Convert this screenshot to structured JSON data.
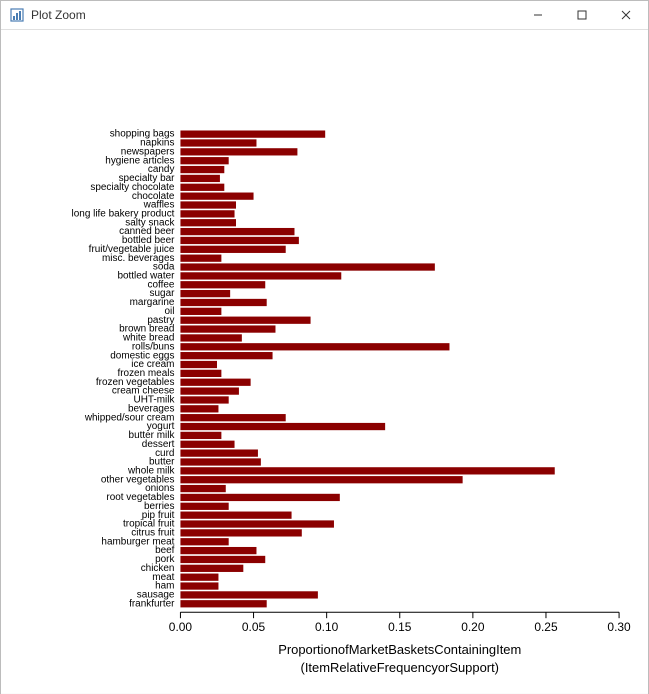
{
  "window": {
    "title": "Plot Zoom",
    "controls": {
      "minimize": "minimize",
      "maximize": "maximize",
      "close": "close"
    }
  },
  "chart": {
    "type": "bar-horizontal",
    "bar_color": "#8b0000",
    "background_color": "#ffffff",
    "axis_color": "#000000",
    "x_axis": {
      "min": 0.0,
      "max": 0.3,
      "ticks": [
        0.0,
        0.05,
        0.1,
        0.15,
        0.2,
        0.25,
        0.3
      ],
      "tick_labels": [
        "0.00",
        "0.05",
        "0.10",
        "0.15",
        "0.20",
        "0.25",
        "0.30"
      ],
      "title_line1": "ProportionofMarketBasketsContainingItem",
      "title_line2": "(ItemRelativeFrequencyorSupport)",
      "label_fontsize": 12,
      "title_fontsize": 13
    },
    "y_axis": {
      "label_fontsize": 10
    },
    "items": [
      {
        "label": "shopping bags",
        "value": 0.099
      },
      {
        "label": "napkins",
        "value": 0.052
      },
      {
        "label": "newspapers",
        "value": 0.08
      },
      {
        "label": "hygiene articles",
        "value": 0.033
      },
      {
        "label": "candy",
        "value": 0.03
      },
      {
        "label": "specialty bar",
        "value": 0.027
      },
      {
        "label": "specialty chocolate",
        "value": 0.03
      },
      {
        "label": "chocolate",
        "value": 0.05
      },
      {
        "label": "waffles",
        "value": 0.038
      },
      {
        "label": "long life bakery product",
        "value": 0.037
      },
      {
        "label": "salty snack",
        "value": 0.038
      },
      {
        "label": "canned beer",
        "value": 0.078
      },
      {
        "label": "bottled beer",
        "value": 0.081
      },
      {
        "label": "fruit/vegetable juice",
        "value": 0.072
      },
      {
        "label": "misc. beverages",
        "value": 0.028
      },
      {
        "label": "soda",
        "value": 0.174
      },
      {
        "label": "bottled water",
        "value": 0.11
      },
      {
        "label": "coffee",
        "value": 0.058
      },
      {
        "label": "sugar",
        "value": 0.034
      },
      {
        "label": "margarine",
        "value": 0.059
      },
      {
        "label": "oil",
        "value": 0.028
      },
      {
        "label": "pastry",
        "value": 0.089
      },
      {
        "label": "brown bread",
        "value": 0.065
      },
      {
        "label": "white bread",
        "value": 0.042
      },
      {
        "label": "rolls/buns",
        "value": 0.184
      },
      {
        "label": "domestic eggs",
        "value": 0.063
      },
      {
        "label": "ice cream",
        "value": 0.025
      },
      {
        "label": "frozen meals",
        "value": 0.028
      },
      {
        "label": "frozen vegetables",
        "value": 0.048
      },
      {
        "label": "cream cheese",
        "value": 0.04
      },
      {
        "label": "UHT-milk",
        "value": 0.033
      },
      {
        "label": "beverages",
        "value": 0.026
      },
      {
        "label": "whipped/sour cream",
        "value": 0.072
      },
      {
        "label": "yogurt",
        "value": 0.14
      },
      {
        "label": "butter milk",
        "value": 0.028
      },
      {
        "label": "dessert",
        "value": 0.037
      },
      {
        "label": "curd",
        "value": 0.053
      },
      {
        "label": "butter",
        "value": 0.055
      },
      {
        "label": "whole milk",
        "value": 0.256
      },
      {
        "label": "other vegetables",
        "value": 0.193
      },
      {
        "label": "onions",
        "value": 0.031
      },
      {
        "label": "root vegetables",
        "value": 0.109
      },
      {
        "label": "berries",
        "value": 0.033
      },
      {
        "label": "pip fruit",
        "value": 0.076
      },
      {
        "label": "tropical fruit",
        "value": 0.105
      },
      {
        "label": "citrus fruit",
        "value": 0.083
      },
      {
        "label": "hamburger meat",
        "value": 0.033
      },
      {
        "label": "beef",
        "value": 0.052
      },
      {
        "label": "pork",
        "value": 0.058
      },
      {
        "label": "chicken",
        "value": 0.043
      },
      {
        "label": "meat",
        "value": 0.026
      },
      {
        "label": "ham",
        "value": 0.026
      },
      {
        "label": "sausage",
        "value": 0.094
      },
      {
        "label": "frankfurter",
        "value": 0.059
      }
    ]
  }
}
